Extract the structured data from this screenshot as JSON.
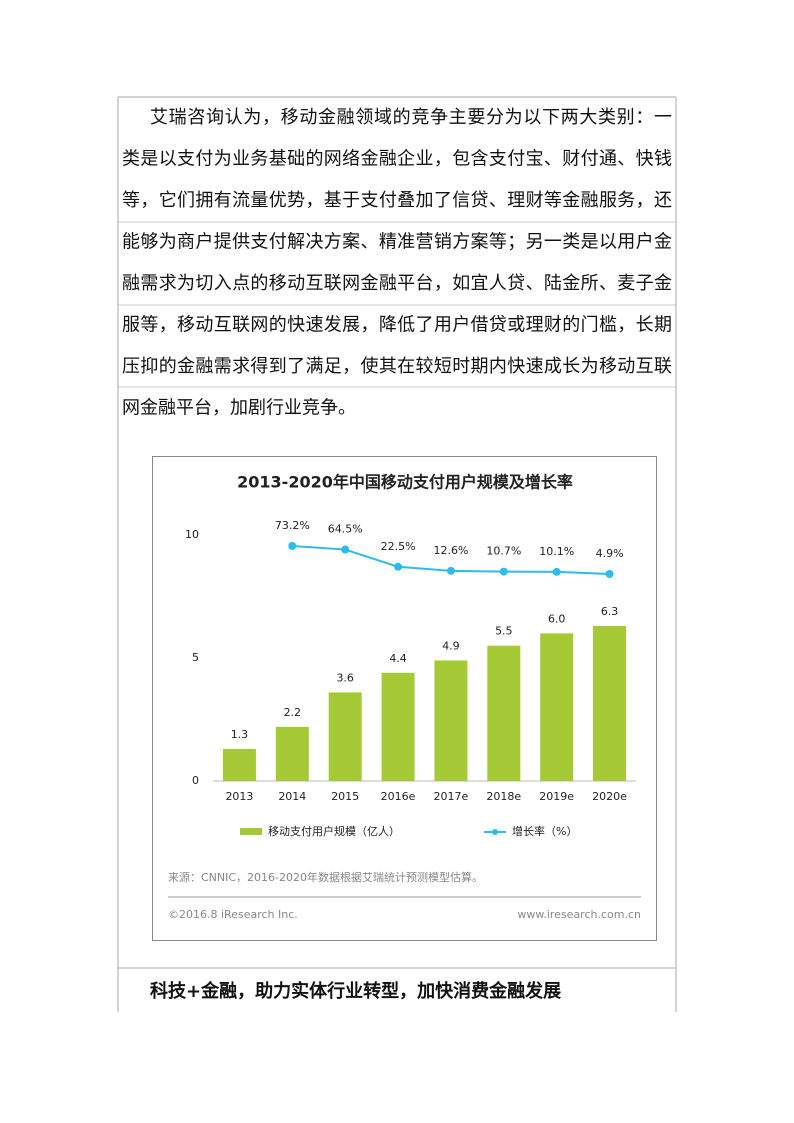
{
  "paragraph": {
    "lines": [
      "艾瑞咨询认为，移动金融领域的竞争主要分为以下两大类别：一",
      "类是以支付为业务基础的网络金融企业，包含支付宝、财付通、快钱",
      "等，它们拥有流量优势，基于支付叠加了信贷、理财等金融服务，还",
      "能够为商户提供支付解决方案、精准营销方案等；另一类是以用户金",
      "融需求为切入点的移动互联网金融平台，如宜人贷、陆金所、麦子金",
      "服等，移动互联网的快速发展，降低了用户借贷或理财的门槛，长期",
      "压抑的金融需求得到了满足，使其在较短时期内快速成长为移动互联",
      "网金融平台，加剧行业竞争。"
    ]
  },
  "chart_data": {
    "type": "bar",
    "title": "2013-2020年中国移动支付用户规模及增长率",
    "categories": [
      "2013",
      "2014",
      "2015",
      "2016e",
      "2017e",
      "2018e",
      "2019e",
      "2020e"
    ],
    "series": [
      {
        "name": "移动支付用户规模（亿人）",
        "color": "#a6c936",
        "values": [
          1.3,
          2.2,
          3.6,
          4.4,
          4.9,
          5.5,
          6.0,
          6.3
        ],
        "value_labels": [
          "1.3",
          "2.2",
          "3.6",
          "4.4",
          "4.9",
          "5.5",
          "6.0",
          "6.3"
        ]
      },
      {
        "name": "增长率（%）",
        "color": "#2cbcee",
        "axis": "y2",
        "values": [
          null,
          73.2,
          64.5,
          22.5,
          12.6,
          10.7,
          10.1,
          4.9
        ],
        "value_labels": [
          null,
          "73.2%",
          "64.5%",
          "22.5%",
          "12.6%",
          "10.7%",
          "10.1%",
          "4.9%"
        ]
      }
    ],
    "ylim": [
      0,
      10
    ],
    "yticks": [
      0,
      5,
      10
    ],
    "y2lim": [
      -500,
      100
    ],
    "source": "来源：CNNIC，2016-2020年数据根据艾瑞统计预测模型估算。",
    "copyright": "©2016.8 iResearch Inc.",
    "website": "www.iresearch.com.cn"
  },
  "heading": "科技+金融，助力实体行业转型，加快消费金融发展"
}
